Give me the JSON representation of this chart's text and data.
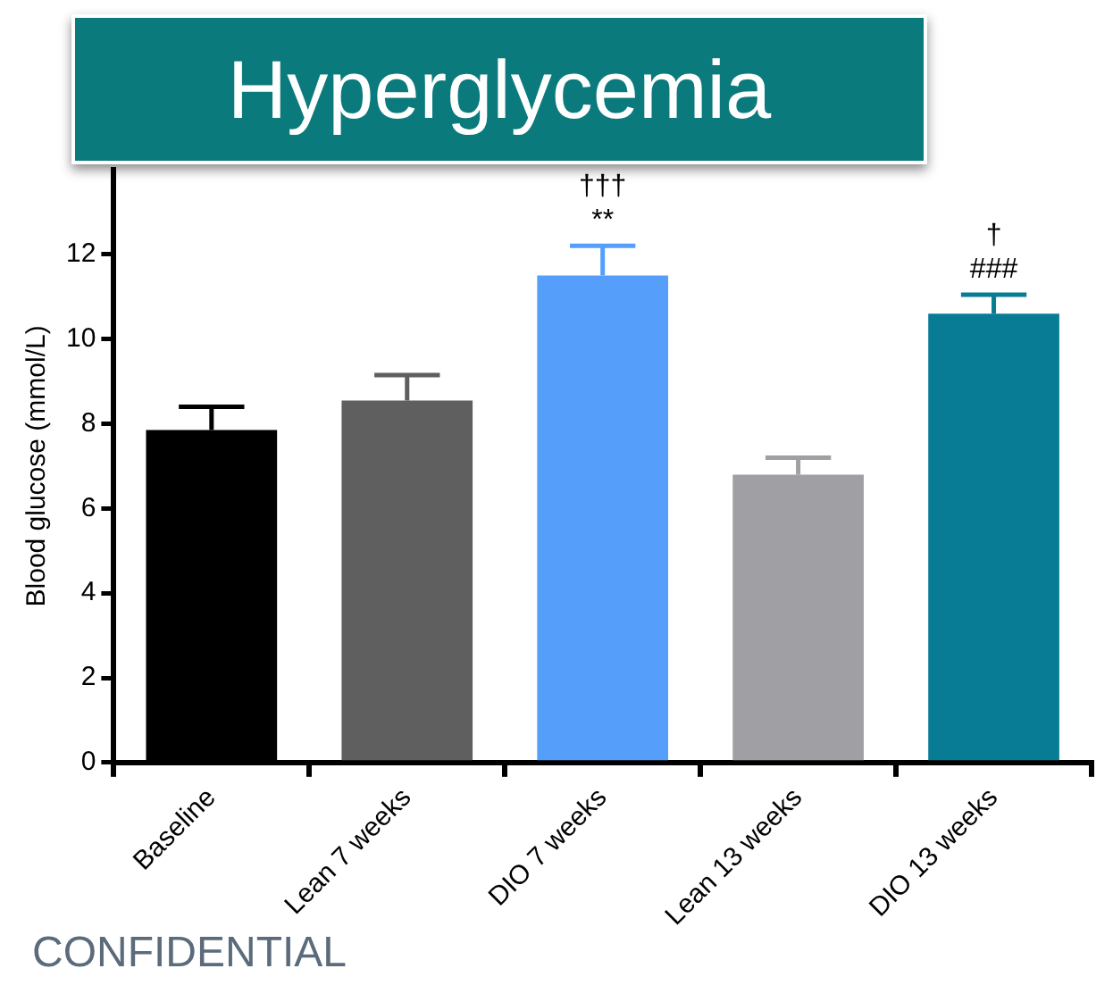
{
  "chart_data": {
    "type": "bar",
    "title": "Hyperglycemia",
    "ylabel": "Blood glucose (mmol/L)",
    "categories": [
      "Baseline",
      "Lean 7 weeks",
      "DIO 7 weeks",
      "Lean 13 weeks",
      "DIO 13 weeks"
    ],
    "values": [
      7.85,
      8.55,
      11.5,
      6.8,
      10.6
    ],
    "errors": [
      0.55,
      0.6,
      0.7,
      0.4,
      0.45
    ],
    "colors": [
      "#000000",
      "#5f5f5f",
      "#559ffa",
      "#a09fa3",
      "#087c94"
    ],
    "ylim": [
      0,
      14
    ],
    "yticks": [
      0,
      2,
      4,
      6,
      8,
      10,
      12
    ],
    "grid": false,
    "legend": false,
    "annotations": [
      "**",
      "†††",
      "###",
      "†",
      "CONFIDENTIAL"
    ]
  }
}
